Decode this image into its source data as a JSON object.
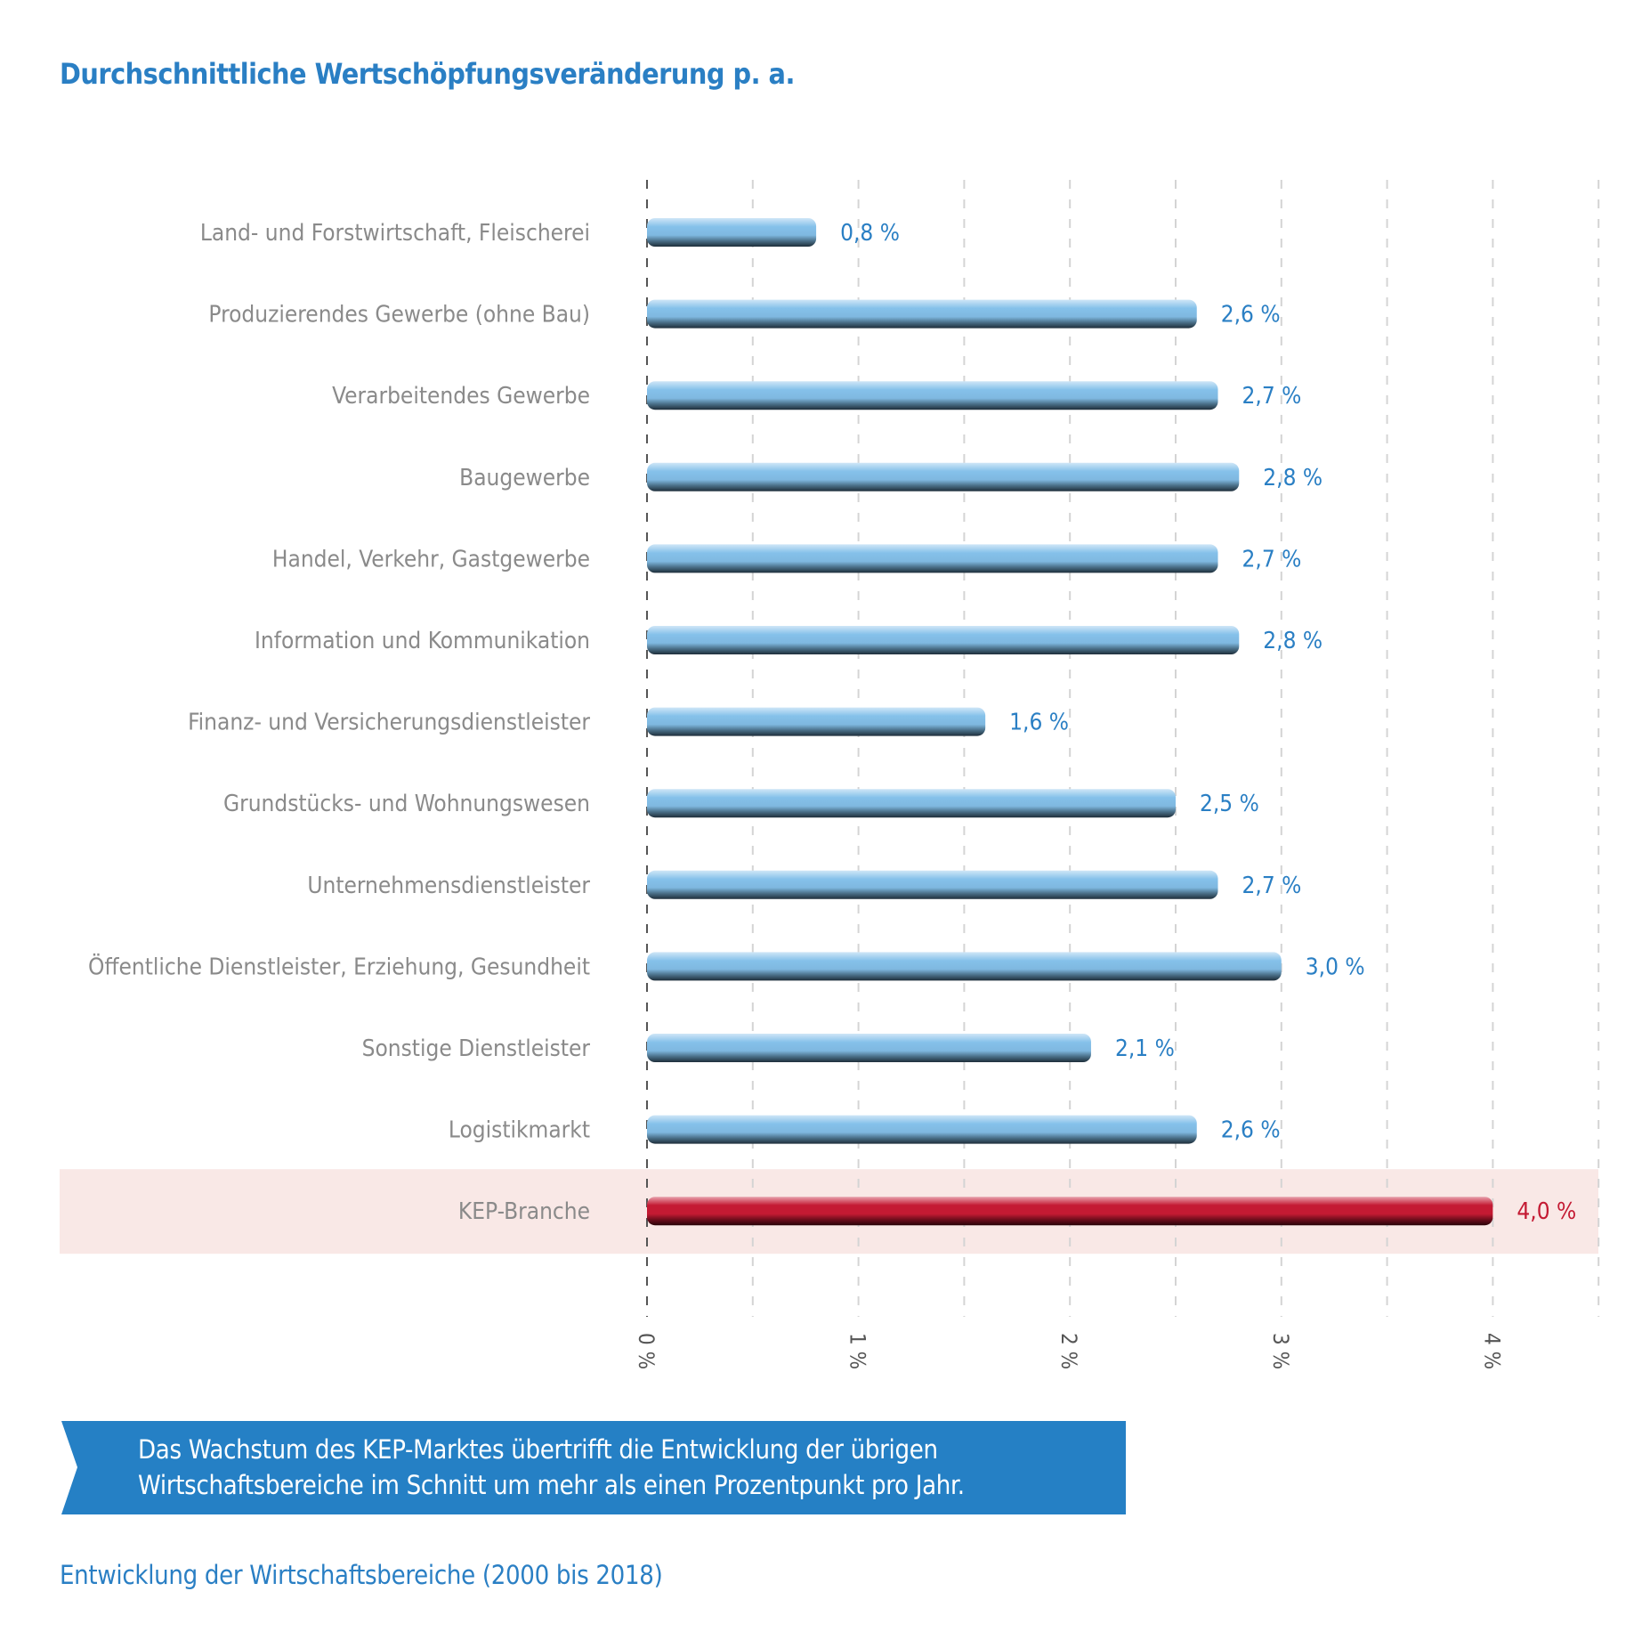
{
  "title": "Durchschnittliche Wertschöpfungsveränderung p. a.",
  "chart_data": {
    "type": "bar",
    "orientation": "horizontal",
    "categories": [
      "Land- und Forstwirtschaft, Fleischerei",
      "Produzierendes Gewerbe (ohne Bau)",
      "Verarbeitendes Gewerbe",
      "Baugewerbe",
      "Handel, Verkehr, Gastgewerbe",
      "Information und Kommunikation",
      "Finanz- und Versicherungsdienstleister",
      "Grundstücks- und Wohnungswesen",
      "Unternehmensdienstleister",
      "Öffentliche Dienstleister, Erziehung, Gesundheit",
      "Sonstige Dienstleister",
      "Logistikmarkt",
      "KEP-Branche"
    ],
    "values": [
      0.8,
      2.6,
      2.7,
      2.8,
      2.7,
      2.8,
      1.6,
      2.5,
      2.7,
      3.0,
      2.1,
      2.6,
      4.0
    ],
    "value_labels": [
      "0,8 %",
      "2,6 %",
      "2,7 %",
      "2,8 %",
      "2,7 %",
      "2,8 %",
      "1,6 %",
      "2,5 %",
      "2,7 %",
      "3,0 %",
      "2,1 %",
      "2,6 %",
      "4,0 %"
    ],
    "highlighted_category": "KEP-Branche",
    "xlim": [
      0,
      4.5
    ],
    "x_ticks": [
      0,
      1,
      2,
      3,
      4
    ],
    "x_tick_labels": [
      "0 %",
      "1 %",
      "2 %",
      "3 %",
      "4 %"
    ],
    "grid": "vertical dashed every 0.5",
    "colors": {
      "bar": "#85c1ea",
      "highlight_bar": "#c41a33",
      "highlight_band": "#f9e8e6",
      "value_label": "#2a7fc4",
      "highlight_value_label": "#c41a33",
      "category_label": "#8a8a8a"
    }
  },
  "banner": {
    "lines": [
      "Das Wachstum des KEP-Marktes übertrifft die Entwicklung der übrigen",
      "Wirtschaftsbereiche im Schnitt um mehr als einen Prozentpunkt pro Jahr."
    ],
    "color": "#2580c5"
  },
  "footer": "Entwicklung der Wirtschaftsbereiche (2000 bis 2018)"
}
